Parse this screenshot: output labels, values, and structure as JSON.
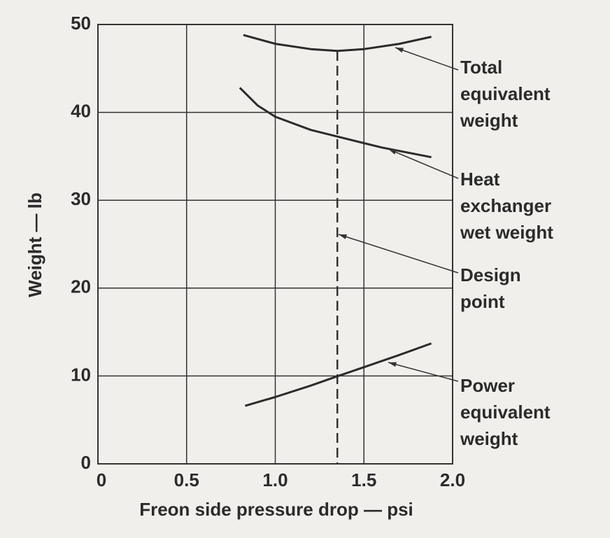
{
  "chart_data": {
    "type": "line",
    "xlabel": "Freon side pressure drop — psi",
    "ylabel": "Weight — lb",
    "xlim": [
      0,
      2.0
    ],
    "ylim": [
      0,
      50
    ],
    "xticks": [
      0,
      0.5,
      {
        "value": 1.0,
        "label": "1.0"
      },
      1.5,
      {
        "value": 2.0,
        "label": "2.0"
      }
    ],
    "yticks": [
      0,
      10,
      20,
      30,
      40,
      50
    ],
    "grid": true,
    "series": [
      {
        "label_lines": [
          "Total",
          "equivalent",
          "weight"
        ],
        "color": "#2b2b2b",
        "x": [
          0.82,
          1.0,
          1.2,
          1.35,
          1.5,
          1.7,
          1.88
        ],
        "values": [
          48.8,
          47.8,
          47.2,
          47.0,
          47.2,
          47.8,
          48.6
        ]
      },
      {
        "label_lines": [
          "Heat",
          "exchanger",
          "wet weight"
        ],
        "color": "#2b2b2b",
        "x": [
          0.8,
          0.9,
          1.0,
          1.2,
          1.4,
          1.6,
          1.88
        ],
        "values": [
          42.8,
          40.8,
          39.5,
          38.0,
          37.0,
          36.0,
          34.9
        ]
      },
      {
        "label_lines": [
          "Power",
          "equivalent",
          "weight"
        ],
        "color": "#2b2b2b",
        "x": [
          0.83,
          1.0,
          1.2,
          1.34,
          1.5,
          1.7,
          1.88
        ],
        "values": [
          6.6,
          7.6,
          8.9,
          9.9,
          11.0,
          12.4,
          13.7
        ]
      }
    ],
    "design_point": {
      "x": 1.35,
      "label_lines": [
        "Design",
        "point"
      ]
    }
  }
}
